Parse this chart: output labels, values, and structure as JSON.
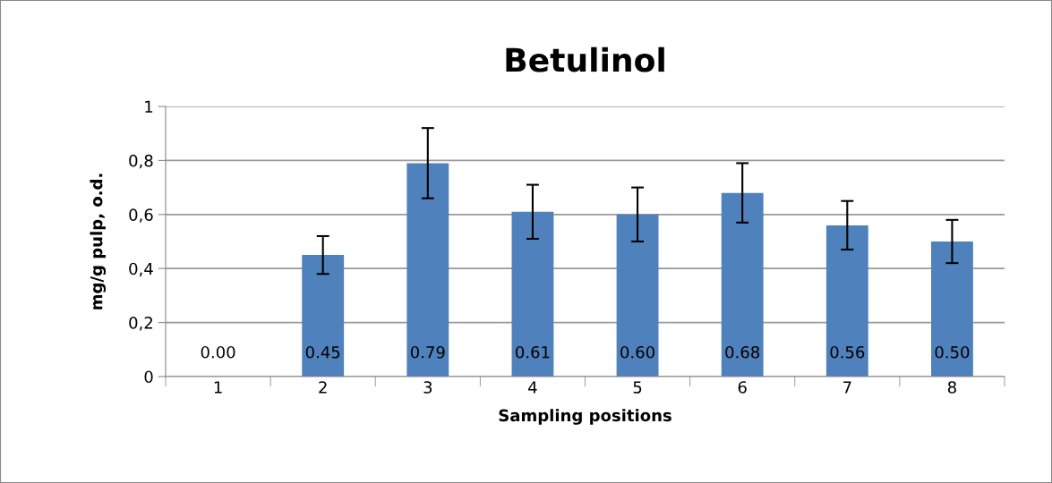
{
  "chart_data": {
    "type": "bar",
    "title": "Betulinol",
    "xlabel": "Sampling positions",
    "ylabel": "mg/g pulp, o.d.",
    "categories": [
      "1",
      "2",
      "3",
      "4",
      "5",
      "6",
      "7",
      "8"
    ],
    "values": [
      0.0,
      0.45,
      0.79,
      0.61,
      0.6,
      0.68,
      0.56,
      0.5
    ],
    "errors": [
      null,
      0.07,
      0.13,
      0.1,
      0.1,
      0.11,
      0.09,
      0.08
    ],
    "value_labels": [
      "0.00",
      "0.45",
      "0.79",
      "0.61",
      "0.60",
      "0.68",
      "0.56",
      "0.50"
    ],
    "color": "#4f81bd",
    "ylim": [
      0,
      1
    ],
    "yticks": [
      0,
      {
        "value": 0.2,
        "label": "0,2"
      },
      {
        "value": 0.4,
        "label": "0,4"
      },
      {
        "value": 0.6,
        "label": "0,6"
      },
      {
        "value": 0.8,
        "label": "0,8"
      },
      1
    ],
    "grid": "y",
    "legend": false
  }
}
